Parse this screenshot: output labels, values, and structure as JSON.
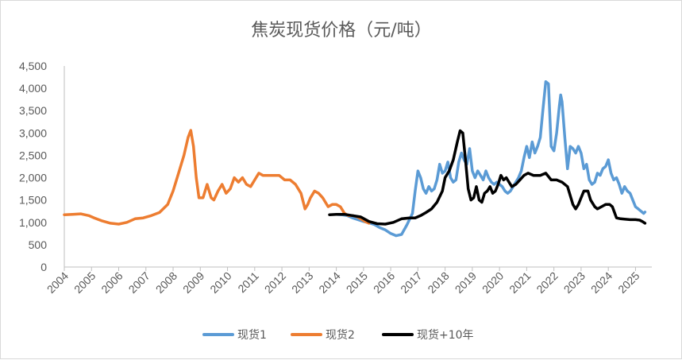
{
  "chart_data": {
    "type": "line",
    "title": "焦炭现货价格（元/吨）",
    "xlabel": "",
    "ylabel": "",
    "x_range": [
      2004,
      2025.6
    ],
    "ylim": [
      0,
      4500
    ],
    "y_ticks": [
      0,
      500,
      1000,
      1500,
      2000,
      2500,
      3000,
      3500,
      4000,
      4500
    ],
    "y_tick_labels": [
      "0",
      "500",
      "1,000",
      "1,500",
      "2,000",
      "2,500",
      "3,000",
      "3,500",
      "4,000",
      "4,500"
    ],
    "x_ticks": [
      2004,
      2005,
      2006,
      2007,
      2008,
      2009,
      2010,
      2011,
      2012,
      2013,
      2014,
      2015,
      2016,
      2017,
      2018,
      2019,
      2020,
      2021,
      2022,
      2023,
      2024,
      2025
    ],
    "x_tick_labels": [
      "2004",
      "2005",
      "2006",
      "2007",
      "2008",
      "2009",
      "2010",
      "2011",
      "2012",
      "2013",
      "2014",
      "2015",
      "2016",
      "2017",
      "2018",
      "2019",
      "2020",
      "2021",
      "2022",
      "2023",
      "2024",
      "2025"
    ],
    "legend_position": "bottom",
    "series": [
      {
        "name": "现货1",
        "color": "#5b9bd5",
        "width": 3.5,
        "points": [
          [
            2014.0,
            1180
          ],
          [
            2014.2,
            1170
          ],
          [
            2014.4,
            1150
          ],
          [
            2014.6,
            1100
          ],
          [
            2014.8,
            1060
          ],
          [
            2015.0,
            1020
          ],
          [
            2015.2,
            990
          ],
          [
            2015.4,
            950
          ],
          [
            2015.6,
            880
          ],
          [
            2015.8,
            830
          ],
          [
            2016.0,
            750
          ],
          [
            2016.2,
            700
          ],
          [
            2016.4,
            730
          ],
          [
            2016.6,
            950
          ],
          [
            2016.8,
            1200
          ],
          [
            2016.9,
            1700
          ],
          [
            2017.0,
            2150
          ],
          [
            2017.1,
            2000
          ],
          [
            2017.2,
            1750
          ],
          [
            2017.3,
            1650
          ],
          [
            2017.4,
            1800
          ],
          [
            2017.5,
            1700
          ],
          [
            2017.6,
            1750
          ],
          [
            2017.7,
            1950
          ],
          [
            2017.8,
            2300
          ],
          [
            2017.9,
            2100
          ],
          [
            2018.0,
            2150
          ],
          [
            2018.1,
            2350
          ],
          [
            2018.2,
            2000
          ],
          [
            2018.3,
            1900
          ],
          [
            2018.4,
            1950
          ],
          [
            2018.5,
            2350
          ],
          [
            2018.6,
            2550
          ],
          [
            2018.7,
            2400
          ],
          [
            2018.8,
            2300
          ],
          [
            2018.9,
            2650
          ],
          [
            2019.0,
            2150
          ],
          [
            2019.1,
            2000
          ],
          [
            2019.2,
            2150
          ],
          [
            2019.3,
            2050
          ],
          [
            2019.4,
            1950
          ],
          [
            2019.5,
            2150
          ],
          [
            2019.6,
            2000
          ],
          [
            2019.7,
            1900
          ],
          [
            2019.8,
            1850
          ],
          [
            2019.9,
            1900
          ],
          [
            2020.0,
            1850
          ],
          [
            2020.1,
            1800
          ],
          [
            2020.2,
            1700
          ],
          [
            2020.3,
            1650
          ],
          [
            2020.4,
            1700
          ],
          [
            2020.5,
            1800
          ],
          [
            2020.6,
            1900
          ],
          [
            2020.7,
            2000
          ],
          [
            2020.8,
            2150
          ],
          [
            2020.9,
            2450
          ],
          [
            2021.0,
            2700
          ],
          [
            2021.1,
            2450
          ],
          [
            2021.2,
            2800
          ],
          [
            2021.3,
            2550
          ],
          [
            2021.4,
            2700
          ],
          [
            2021.5,
            2900
          ],
          [
            2021.6,
            3550
          ],
          [
            2021.7,
            4150
          ],
          [
            2021.8,
            4100
          ],
          [
            2021.9,
            2700
          ],
          [
            2022.0,
            2600
          ],
          [
            2022.1,
            3000
          ],
          [
            2022.2,
            3600
          ],
          [
            2022.25,
            3850
          ],
          [
            2022.3,
            3700
          ],
          [
            2022.4,
            2900
          ],
          [
            2022.5,
            2200
          ],
          [
            2022.6,
            2700
          ],
          [
            2022.7,
            2650
          ],
          [
            2022.8,
            2550
          ],
          [
            2022.9,
            2700
          ],
          [
            2023.0,
            2550
          ],
          [
            2023.1,
            2200
          ],
          [
            2023.2,
            2300
          ],
          [
            2023.3,
            1950
          ],
          [
            2023.4,
            1850
          ],
          [
            2023.5,
            1900
          ],
          [
            2023.6,
            2100
          ],
          [
            2023.7,
            2050
          ],
          [
            2023.8,
            2200
          ],
          [
            2023.9,
            2250
          ],
          [
            2024.0,
            2400
          ],
          [
            2024.1,
            2100
          ],
          [
            2024.2,
            1950
          ],
          [
            2024.3,
            2000
          ],
          [
            2024.4,
            1850
          ],
          [
            2024.5,
            1650
          ],
          [
            2024.6,
            1800
          ],
          [
            2024.7,
            1700
          ],
          [
            2024.8,
            1650
          ],
          [
            2024.9,
            1500
          ],
          [
            2025.0,
            1350
          ],
          [
            2025.1,
            1300
          ],
          [
            2025.2,
            1250
          ],
          [
            2025.3,
            1200
          ],
          [
            2025.35,
            1230
          ]
        ]
      },
      {
        "name": "现货2",
        "color": "#ed7d31",
        "width": 3.5,
        "points": [
          [
            2004.0,
            1170
          ],
          [
            2004.3,
            1180
          ],
          [
            2004.6,
            1190
          ],
          [
            2004.9,
            1150
          ],
          [
            2005.1,
            1100
          ],
          [
            2005.4,
            1030
          ],
          [
            2005.7,
            980
          ],
          [
            2006.0,
            960
          ],
          [
            2006.3,
            1000
          ],
          [
            2006.6,
            1080
          ],
          [
            2006.9,
            1100
          ],
          [
            2007.2,
            1150
          ],
          [
            2007.5,
            1220
          ],
          [
            2007.8,
            1400
          ],
          [
            2008.0,
            1700
          ],
          [
            2008.2,
            2100
          ],
          [
            2008.4,
            2500
          ],
          [
            2008.55,
            2900
          ],
          [
            2008.65,
            3060
          ],
          [
            2008.75,
            2700
          ],
          [
            2008.85,
            2000
          ],
          [
            2008.95,
            1550
          ],
          [
            2009.1,
            1550
          ],
          [
            2009.25,
            1850
          ],
          [
            2009.4,
            1550
          ],
          [
            2009.5,
            1500
          ],
          [
            2009.65,
            1700
          ],
          [
            2009.8,
            1850
          ],
          [
            2009.95,
            1650
          ],
          [
            2010.1,
            1750
          ],
          [
            2010.25,
            2000
          ],
          [
            2010.4,
            1900
          ],
          [
            2010.55,
            2000
          ],
          [
            2010.7,
            1850
          ],
          [
            2010.85,
            1800
          ],
          [
            2011.0,
            1950
          ],
          [
            2011.15,
            2100
          ],
          [
            2011.3,
            2050
          ],
          [
            2011.5,
            2050
          ],
          [
            2011.7,
            2050
          ],
          [
            2011.9,
            2050
          ],
          [
            2012.1,
            1950
          ],
          [
            2012.3,
            1950
          ],
          [
            2012.5,
            1850
          ],
          [
            2012.7,
            1650
          ],
          [
            2012.85,
            1300
          ],
          [
            2012.95,
            1400
          ],
          [
            2013.05,
            1550
          ],
          [
            2013.2,
            1700
          ],
          [
            2013.35,
            1650
          ],
          [
            2013.5,
            1550
          ],
          [
            2013.6,
            1450
          ],
          [
            2013.7,
            1350
          ],
          [
            2013.85,
            1400
          ],
          [
            2014.0,
            1400
          ],
          [
            2014.15,
            1350
          ],
          [
            2014.3,
            1200
          ],
          [
            2014.45,
            1150
          ],
          [
            2014.6,
            1150
          ],
          [
            2014.75,
            1130
          ],
          [
            2014.9,
            1080
          ],
          [
            2015.05,
            1020
          ],
          [
            2015.2,
            980
          ]
        ]
      },
      {
        "name": "现货+10年",
        "color": "#000000",
        "width": 3.5,
        "points": [
          [
            2013.75,
            1170
          ],
          [
            2014.0,
            1180
          ],
          [
            2014.3,
            1180
          ],
          [
            2014.6,
            1150
          ],
          [
            2014.9,
            1120
          ],
          [
            2015.2,
            1020
          ],
          [
            2015.5,
            970
          ],
          [
            2015.8,
            960
          ],
          [
            2016.1,
            1000
          ],
          [
            2016.4,
            1080
          ],
          [
            2016.7,
            1100
          ],
          [
            2016.9,
            1100
          ],
          [
            2017.1,
            1150
          ],
          [
            2017.3,
            1220
          ],
          [
            2017.5,
            1300
          ],
          [
            2017.7,
            1450
          ],
          [
            2017.9,
            1700
          ],
          [
            2018.0,
            2000
          ],
          [
            2018.15,
            2150
          ],
          [
            2018.3,
            2400
          ],
          [
            2018.45,
            2800
          ],
          [
            2018.55,
            3050
          ],
          [
            2018.65,
            3000
          ],
          [
            2018.75,
            2400
          ],
          [
            2018.85,
            1750
          ],
          [
            2018.95,
            1500
          ],
          [
            2019.05,
            1550
          ],
          [
            2019.15,
            1800
          ],
          [
            2019.25,
            1500
          ],
          [
            2019.35,
            1450
          ],
          [
            2019.45,
            1650
          ],
          [
            2019.55,
            1700
          ],
          [
            2019.65,
            1800
          ],
          [
            2019.75,
            1650
          ],
          [
            2019.85,
            1700
          ],
          [
            2019.95,
            1850
          ],
          [
            2020.05,
            2050
          ],
          [
            2020.15,
            1950
          ],
          [
            2020.25,
            2000
          ],
          [
            2020.35,
            1900
          ],
          [
            2020.45,
            1800
          ],
          [
            2020.6,
            1850
          ],
          [
            2020.75,
            1950
          ],
          [
            2020.9,
            2050
          ],
          [
            2021.05,
            2100
          ],
          [
            2021.25,
            2050
          ],
          [
            2021.5,
            2050
          ],
          [
            2021.7,
            2100
          ],
          [
            2021.9,
            1950
          ],
          [
            2022.1,
            1950
          ],
          [
            2022.3,
            1900
          ],
          [
            2022.5,
            1800
          ],
          [
            2022.6,
            1600
          ],
          [
            2022.7,
            1400
          ],
          [
            2022.8,
            1300
          ],
          [
            2022.9,
            1400
          ],
          [
            2023.0,
            1550
          ],
          [
            2023.1,
            1700
          ],
          [
            2023.25,
            1700
          ],
          [
            2023.35,
            1500
          ],
          [
            2023.5,
            1350
          ],
          [
            2023.6,
            1300
          ],
          [
            2023.75,
            1350
          ],
          [
            2023.9,
            1400
          ],
          [
            2024.05,
            1400
          ],
          [
            2024.15,
            1350
          ],
          [
            2024.3,
            1100
          ],
          [
            2024.45,
            1080
          ],
          [
            2024.6,
            1070
          ],
          [
            2024.8,
            1060
          ],
          [
            2025.0,
            1060
          ],
          [
            2025.15,
            1050
          ],
          [
            2025.25,
            1020
          ],
          [
            2025.35,
            980
          ]
        ]
      }
    ]
  }
}
